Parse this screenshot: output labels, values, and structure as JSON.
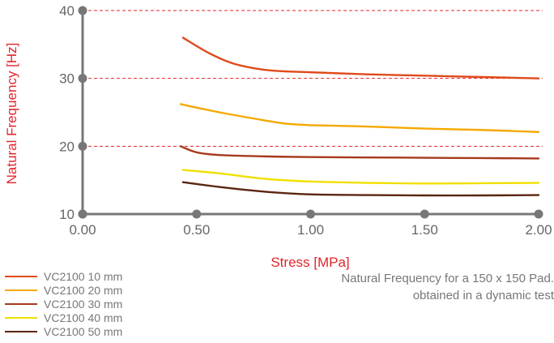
{
  "chart_data": {
    "type": "line",
    "ylabel": "Natural Frequency [Hz]",
    "xlabel": "Stress [MPa]",
    "xlim": [
      0,
      2
    ],
    "ylim": [
      10,
      40
    ],
    "x_ticks": [
      "0.00",
      "0.50",
      "1.00",
      "1.50",
      "2.00"
    ],
    "y_ticks": [
      "10",
      "20",
      "30",
      "40"
    ],
    "dashed_gridlines_y": [
      20,
      30,
      40
    ],
    "series": [
      {
        "name": "VC2100 10 mm",
        "color": "#e04a1a",
        "x": [
          0.44,
          0.55,
          0.65,
          0.75,
          0.85,
          1.0,
          1.25,
          1.5,
          1.75,
          2.0
        ],
        "y": [
          36.0,
          33.8,
          32.3,
          31.5,
          31.1,
          30.9,
          30.6,
          30.4,
          30.2,
          30.0
        ]
      },
      {
        "name": "VC2100 20 mm",
        "color": "#f5a800",
        "x": [
          0.43,
          0.6,
          0.8,
          0.9,
          1.0,
          1.25,
          1.5,
          1.75,
          2.0
        ],
        "y": [
          26.2,
          25.0,
          23.8,
          23.3,
          23.1,
          22.9,
          22.6,
          22.4,
          22.1
        ]
      },
      {
        "name": "VC2100 30 mm",
        "color": "#a63a1c",
        "x": [
          0.43,
          0.5,
          0.6,
          0.8,
          1.0,
          1.25,
          1.5,
          1.75,
          2.0
        ],
        "y": [
          20.0,
          19.1,
          18.7,
          18.5,
          18.4,
          18.35,
          18.3,
          18.25,
          18.2
        ]
      },
      {
        "name": "VC2100 40 mm",
        "color": "#f0e000",
        "x": [
          0.44,
          0.6,
          0.8,
          1.0,
          1.25,
          1.5,
          1.75,
          2.0
        ],
        "y": [
          16.5,
          16.0,
          15.2,
          14.8,
          14.6,
          14.5,
          14.55,
          14.6
        ]
      },
      {
        "name": "VC2100 50 mm",
        "color": "#5a2510",
        "x": [
          0.44,
          0.6,
          0.8,
          1.0,
          1.25,
          1.5,
          1.75,
          2.0
        ],
        "y": [
          14.7,
          14.0,
          13.3,
          12.9,
          12.8,
          12.75,
          12.75,
          12.8
        ]
      }
    ],
    "caption": [
      "Natural Frequency for a 150 x 150 Pad.",
      "obtained in a dynamic test"
    ],
    "colors": {
      "axis": "#777777",
      "grid": "#e0262b",
      "title": "#e0262b",
      "tick": "#666666"
    }
  }
}
